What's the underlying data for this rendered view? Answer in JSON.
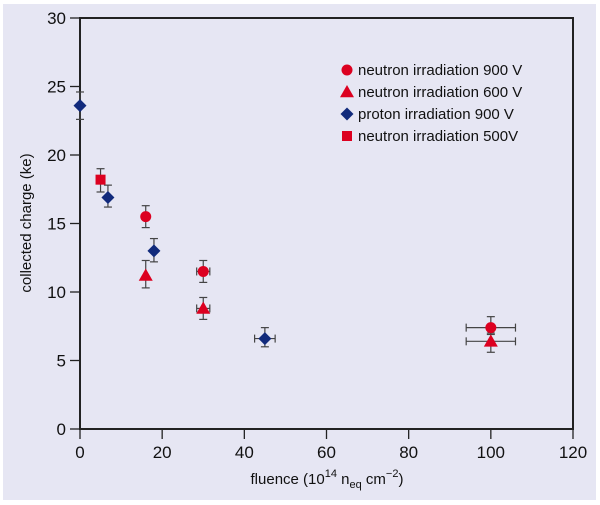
{
  "colors": {
    "panel_background": "#e6e6f3",
    "neutron": "#dc0020",
    "proton": "#112a7c",
    "axis": "#222222",
    "error_bar": "#444444"
  },
  "chart_data": {
    "type": "scatter",
    "title": "",
    "xlabel": {
      "prefix": "fluence (10",
      "sup1": "14",
      "mid": " n",
      "sub": "eq",
      "mid2": " cm",
      "sup2": "−2",
      "suffix": ")"
    },
    "xlabel_text": "fluence (10^14 n_eq cm^-2)",
    "ylabel": "collected charge (ke)",
    "xlim": [
      0,
      120
    ],
    "ylim": [
      0,
      30
    ],
    "xticks": [
      0,
      20,
      40,
      60,
      80,
      100,
      120
    ],
    "yticks": [
      0,
      5,
      10,
      15,
      20,
      25,
      30
    ],
    "grid": false,
    "legend_position": "top-right",
    "series": [
      {
        "name": "neutron irradiation 900 V",
        "marker": "circle",
        "color": "#dc0020",
        "points": [
          {
            "x": 16,
            "y": 15.5,
            "yerr_low": 14.7,
            "yerr_high": 16.3,
            "xerr": 0
          },
          {
            "x": 30,
            "y": 11.5,
            "yerr_low": 10.7,
            "yerr_high": 12.3,
            "xerr": 1.6
          },
          {
            "x": 100,
            "y": 7.4,
            "yerr_low": 6.9,
            "yerr_high": 8.2,
            "xerr": 6
          }
        ]
      },
      {
        "name": "neutron irradiation 600 V",
        "marker": "triangle",
        "color": "#dc0020",
        "points": [
          {
            "x": 16,
            "y": 11.2,
            "yerr_low": 10.3,
            "yerr_high": 12.3,
            "xerr": 0
          },
          {
            "x": 30,
            "y": 8.8,
            "yerr_low": 8.0,
            "yerr_high": 9.6,
            "xerr": 1.6
          },
          {
            "x": 100,
            "y": 6.4,
            "yerr_low": 5.6,
            "yerr_high": 7.0,
            "xerr": 6
          }
        ]
      },
      {
        "name": "proton irradiation 900 V",
        "marker": "diamond",
        "color": "#112a7c",
        "points": [
          {
            "x": 0,
            "y": 23.6,
            "yerr_low": 22.6,
            "yerr_high": 24.6,
            "xerr": 0
          },
          {
            "x": 6.8,
            "y": 16.9,
            "yerr_low": 16.2,
            "yerr_high": 17.8,
            "xerr": 0
          },
          {
            "x": 18,
            "y": 13.0,
            "yerr_low": 12.2,
            "yerr_high": 13.9,
            "xerr": 0
          },
          {
            "x": 45,
            "y": 6.6,
            "yerr_low": 6.0,
            "yerr_high": 7.4,
            "xerr": 2.5
          }
        ]
      },
      {
        "name": "neutron irradiation 500V",
        "marker": "square",
        "color": "#dc0020",
        "points": [
          {
            "x": 5,
            "y": 18.2,
            "yerr_low": 17.3,
            "yerr_high": 19.0,
            "xerr": 0
          }
        ]
      }
    ]
  }
}
